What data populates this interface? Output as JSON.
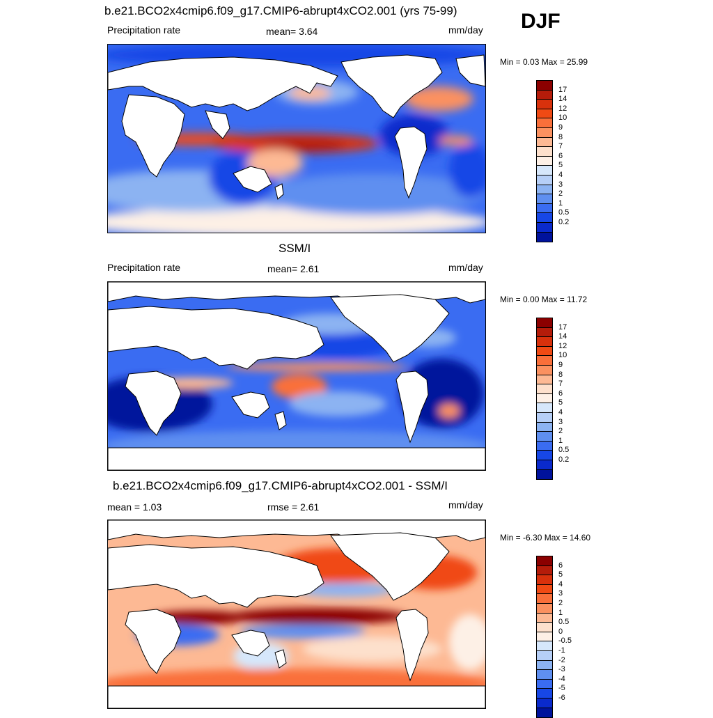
{
  "season": "DJF",
  "panels": [
    {
      "title": "b.e21.BCO2x4cmip6.f09_g17.CMIP6-abrupt4xCO2.001 (yrs 75-99)",
      "left_label": "Precipitation rate",
      "mid_label": "mean=   3.64",
      "units": "mm/day",
      "minmax": "Min =   0.03 Max =  25.99",
      "colorbar": {
        "labels": [
          "17",
          "14",
          "12",
          "10",
          "9",
          "8",
          "7",
          "6",
          "5",
          "4",
          "3",
          "2",
          "1",
          "0.5",
          "0.2"
        ],
        "colors": [
          "#8b0000",
          "#b51c0a",
          "#d8310c",
          "#f04a14",
          "#f96f3a",
          "#fb9160",
          "#fdb994",
          "#fde0cc",
          "#fdf0e6",
          "#d6e7fb",
          "#b6cff7",
          "#8cb3f2",
          "#5f8ff0",
          "#3a6cf2",
          "#1747e6",
          "#0a2acc",
          "#00129c"
        ]
      },
      "chart_data": {
        "type": "heatmap",
        "title": "b.e21.BCO2x4cmip6.f09_g17.CMIP6-abrupt4xCO2.001 (yrs 75-99)",
        "variable": "Precipitation rate",
        "units": "mm/day",
        "mean": 3.64,
        "min": 0.03,
        "max": 25.99,
        "contour_levels": [
          0.2,
          0.5,
          1,
          2,
          3,
          4,
          5,
          6,
          7,
          8,
          9,
          10,
          12,
          14,
          17
        ]
      }
    },
    {
      "title": "SSM/I",
      "left_label": "Precipitation rate",
      "mid_label": "mean=   2.61",
      "units": "mm/day",
      "minmax": "Min =   0.00 Max =  11.72",
      "colorbar": {
        "labels": [
          "17",
          "14",
          "12",
          "10",
          "9",
          "8",
          "7",
          "6",
          "5",
          "4",
          "3",
          "2",
          "1",
          "0.5",
          "0.2"
        ],
        "colors": [
          "#8b0000",
          "#b51c0a",
          "#d8310c",
          "#f04a14",
          "#f96f3a",
          "#fb9160",
          "#fdb994",
          "#fde0cc",
          "#fdf0e6",
          "#d6e7fb",
          "#b6cff7",
          "#8cb3f2",
          "#5f8ff0",
          "#3a6cf2",
          "#1747e6",
          "#0a2acc",
          "#00129c"
        ]
      },
      "chart_data": {
        "type": "heatmap",
        "title": "SSM/I",
        "variable": "Precipitation rate",
        "units": "mm/day",
        "mean": 2.61,
        "min": 0.0,
        "max": 11.72,
        "contour_levels": [
          0.2,
          0.5,
          1,
          2,
          3,
          4,
          5,
          6,
          7,
          8,
          9,
          10,
          12,
          14,
          17
        ]
      }
    },
    {
      "title": "b.e21.BCO2x4cmip6.f09_g17.CMIP6-abrupt4xCO2.001 - SSM/I",
      "left_label": "mean =   1.03",
      "mid_label": "rmse =   2.61",
      "units": "mm/day",
      "minmax": "Min =  -6.30 Max =  14.60",
      "colorbar": {
        "labels": [
          "6",
          "5",
          "4",
          "3",
          "2",
          "1",
          "0.5",
          "0",
          "-0.5",
          "-1",
          "-2",
          "-3",
          "-4",
          "-5",
          "-6"
        ],
        "colors": [
          "#8b0000",
          "#b51c0a",
          "#d8310c",
          "#f04a14",
          "#f96f3a",
          "#fb9160",
          "#fdb994",
          "#fde0cc",
          "#fdf0e6",
          "#d6e7fb",
          "#b6cff7",
          "#8cb3f2",
          "#5f8ff0",
          "#3a6cf2",
          "#1747e6",
          "#0a2acc",
          "#00129c"
        ]
      },
      "chart_data": {
        "type": "heatmap",
        "title": "b.e21.BCO2x4cmip6.f09_g17.CMIP6-abrupt4xCO2.001 - SSM/I",
        "units": "mm/day",
        "mean": 1.03,
        "rmse": 2.61,
        "min": -6.3,
        "max": 14.6,
        "contour_levels": [
          -6,
          -5,
          -4,
          -3,
          -2,
          -1,
          -0.5,
          0,
          0.5,
          1,
          2,
          3,
          4,
          5,
          6
        ]
      }
    }
  ]
}
